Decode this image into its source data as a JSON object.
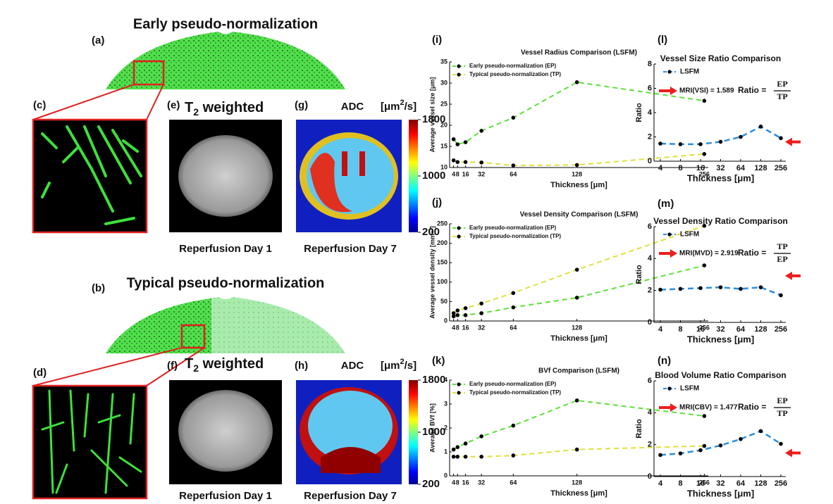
{
  "figure": {
    "early_title": "Early pseudo-normalization",
    "typical_title": "Typical pseudo-normalization",
    "panel_labels": [
      "(a)",
      "(b)",
      "(c)",
      "(d)",
      "(e)",
      "(f)",
      "(g)",
      "(h)"
    ],
    "t2": {
      "main": "T",
      "sub": "2",
      "rest": " weighted"
    },
    "adc": "ADC",
    "unit": {
      "pre": "[μm",
      "sup": "2",
      "post": "/s]"
    },
    "day1": "Reperfusion Day 1",
    "day7": "Reperfusion Day 7",
    "colorbar": {
      "lim": [
        200,
        1800
      ],
      "ticks": [
        200,
        1000,
        1800
      ]
    }
  },
  "chart_data": [
    {
      "type": "line",
      "panel": "(i)",
      "title": "Vessel Radius Comparison (LSFM)",
      "xlabel": "Thickness [μm]",
      "ylabel": "Average vessel size [μm]",
      "x": [
        4,
        8,
        16,
        32,
        64,
        128,
        256
      ],
      "xlim": [
        0,
        260
      ],
      "xticks": [
        4,
        8,
        16,
        32,
        64,
        128,
        256
      ],
      "ylim": [
        10,
        35
      ],
      "yticks": [
        10,
        15,
        20,
        25,
        30,
        35
      ],
      "legend": "upper left",
      "series": [
        {
          "name": "Early pseudo-normalization (EP)",
          "color": "#5ee03a",
          "values": [
            16.7,
            15.5,
            16,
            18.7,
            21.8,
            30.2,
            25.8
          ]
        },
        {
          "name": "Typical pseudo-normalization (TP)",
          "color": "#e0e03a",
          "values": [
            11.7,
            11.3,
            11.3,
            11.2,
            10.5,
            10.6,
            13.2
          ]
        }
      ]
    },
    {
      "type": "line",
      "panel": "(j)",
      "title": "Vessel Density Comparison (LSFM)",
      "xlabel": "Thickness [μm]",
      "ylabel": "Average vessel density [mm⁻²]",
      "x": [
        4,
        8,
        16,
        32,
        64,
        128,
        256
      ],
      "xlim": [
        0,
        260
      ],
      "xticks": [
        4,
        8,
        16,
        32,
        64,
        128,
        256
      ],
      "ylim": [
        0,
        250
      ],
      "yticks": [
        0,
        50,
        100,
        150,
        200,
        250
      ],
      "legend": "upper left",
      "series": [
        {
          "name": "Early pseudo-normalization (EP)",
          "color": "#5ee03a",
          "values": [
            12,
            15,
            15,
            20,
            35,
            60,
            143
          ]
        },
        {
          "name": "Typical pseudo-normalization (TP)",
          "color": "#e0e03a",
          "values": [
            20,
            27,
            33,
            45,
            72,
            132,
            245
          ]
        }
      ]
    },
    {
      "type": "line",
      "panel": "(k)",
      "title": "BVf Comparison (LSFM)",
      "xlabel": "Thickness [μm]",
      "ylabel": "Average BVf [%]",
      "x": [
        4,
        8,
        16,
        32,
        64,
        128,
        256
      ],
      "xlim": [
        0,
        260
      ],
      "xticks": [
        4,
        8,
        16,
        32,
        64,
        128,
        256
      ],
      "ylim": [
        0,
        4
      ],
      "yticks": [
        0,
        1,
        2,
        3,
        4
      ],
      "legend": "upper left",
      "series": [
        {
          "name": "Early pseudo-normalization (EP)",
          "color": "#5ee03a",
          "values": [
            1.1,
            1.2,
            1.35,
            1.65,
            2.1,
            3.15,
            2.5
          ]
        },
        {
          "name": "Typical pseudo-normalization (TP)",
          "color": "#e0e03a",
          "values": [
            0.8,
            0.8,
            0.8,
            0.8,
            0.85,
            1.1,
            1.25
          ]
        }
      ]
    },
    {
      "type": "ratio",
      "panel": "(l)",
      "title": "Vessel Size Ratio Comparison",
      "xlabel": "Thickness [μm]",
      "ylabel": "Ratio",
      "x": [
        4,
        8,
        16,
        32,
        64,
        128,
        256
      ],
      "xscale": "log",
      "xlim": [
        4,
        256
      ],
      "xticks": [
        4,
        8,
        16,
        32,
        64,
        128,
        256
      ],
      "ylim": [
        0,
        8
      ],
      "yticks": [
        0,
        2,
        4,
        6,
        8
      ],
      "legend": "upper left",
      "series": [
        {
          "name": "LSFM",
          "color": "#2b8ee0",
          "values": [
            1.45,
            1.4,
            1.4,
            1.6,
            2.0,
            2.85,
            1.9
          ]
        }
      ],
      "annotation": "MRI(VSI) = 1.589",
      "mri_value": 1.589,
      "arrow_color": "#ee1c1c",
      "ratio": {
        "label": "Ratio =",
        "numerator": "EP",
        "denominator": "TP"
      }
    },
    {
      "type": "ratio",
      "panel": "(m)",
      "title": "Vessel Density Ratio Comparison",
      "xlabel": "Thickness [μm]",
      "ylabel": "Ratio",
      "x": [
        4,
        8,
        16,
        32,
        64,
        128,
        256
      ],
      "xscale": "log",
      "xlim": [
        4,
        256
      ],
      "xticks": [
        4,
        8,
        16,
        32,
        64,
        128,
        256
      ],
      "ylim": [
        0,
        6
      ],
      "yticks": [
        0,
        2,
        4,
        6
      ],
      "legend": "upper left",
      "series": [
        {
          "name": "LSFM",
          "color": "#2b8ee0",
          "values": [
            2.05,
            2.1,
            2.15,
            2.2,
            2.1,
            2.2,
            1.7
          ]
        }
      ],
      "annotation": "MRI(MVD) = 2.919",
      "mri_value": 2.919,
      "arrow_color": "#ee1c1c",
      "ratio": {
        "label": "Ratio =",
        "numerator": "TP",
        "denominator": "EP"
      }
    },
    {
      "type": "ratio",
      "panel": "(n)",
      "title": "Blood Volume Ratio Comparison",
      "xlabel": "Thickness [μm]",
      "ylabel": "Ratio",
      "x": [
        4,
        8,
        16,
        32,
        64,
        128,
        256
      ],
      "xscale": "log",
      "xlim": [
        4,
        256
      ],
      "xticks": [
        4,
        8,
        16,
        32,
        64,
        128,
        256
      ],
      "ylim": [
        0,
        6
      ],
      "yticks": [
        0,
        2,
        4,
        6
      ],
      "legend": "upper left",
      "series": [
        {
          "name": "LSFM",
          "color": "#2b8ee0",
          "values": [
            1.35,
            1.45,
            1.65,
            1.95,
            2.35,
            2.85,
            2.05
          ]
        }
      ],
      "annotation": "MRI(CBV) = 1.477",
      "mri_value": 1.477,
      "arrow_color": "#ee1c1c",
      "ratio": {
        "label": "Ratio =",
        "numerator": "EP",
        "denominator": "TP"
      }
    }
  ]
}
